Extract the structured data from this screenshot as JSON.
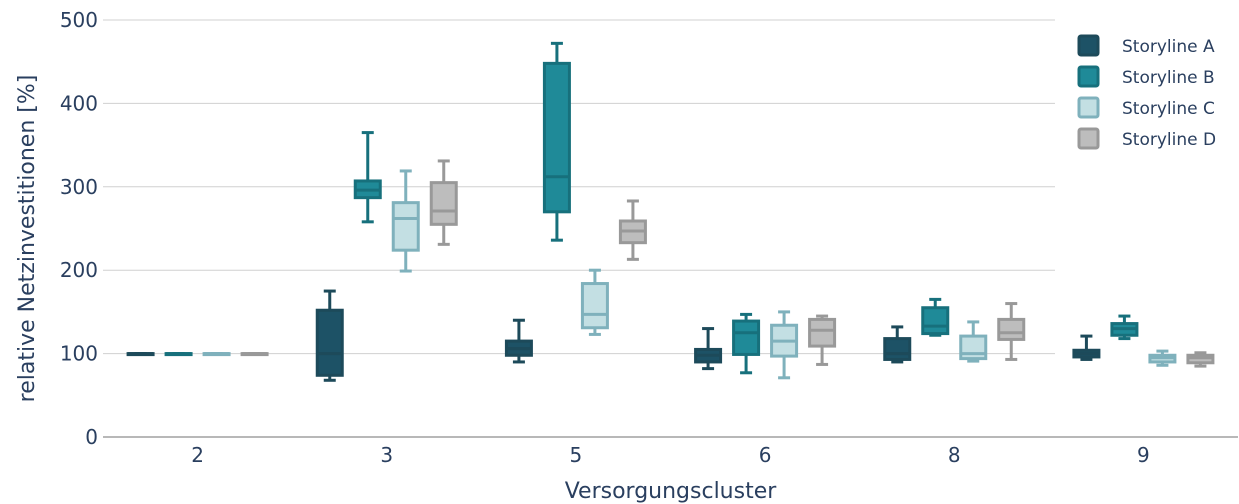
{
  "chart_data": {
    "type": "box",
    "xlabel": "Versorgungscluster",
    "ylabel": "relative Netzinvestitionen [%]",
    "ylim": [
      0,
      500
    ],
    "yticks": [
      0,
      100,
      200,
      300,
      400,
      500
    ],
    "grid": true,
    "legend_position": "top-right",
    "categories": [
      "2",
      "3",
      "5",
      "6",
      "8",
      "9"
    ],
    "series": [
      {
        "name": "Storyline A",
        "fill": "#1d5266",
        "stroke": "#1d4a5a",
        "boxes": [
          {
            "min": 100,
            "q1": 100,
            "median": 100,
            "q3": 100,
            "max": 100
          },
          {
            "min": 68,
            "q1": 74,
            "median": 100,
            "q3": 152,
            "max": 175
          },
          {
            "min": 90,
            "q1": 98,
            "median": 106,
            "q3": 115,
            "max": 140
          },
          {
            "min": 82,
            "q1": 90,
            "median": 98,
            "q3": 105,
            "max": 130
          },
          {
            "min": 90,
            "q1": 93,
            "median": 100,
            "q3": 118,
            "max": 132
          },
          {
            "min": 93,
            "q1": 96,
            "median": 100,
            "q3": 104,
            "max": 121
          }
        ]
      },
      {
        "name": "Storyline B",
        "fill": "#1f8a98",
        "stroke": "#17707c",
        "boxes": [
          {
            "min": 100,
            "q1": 100,
            "median": 100,
            "q3": 100,
            "max": 100
          },
          {
            "min": 258,
            "q1": 287,
            "median": 296,
            "q3": 307,
            "max": 365
          },
          {
            "min": 236,
            "q1": 270,
            "median": 312,
            "q3": 448,
            "max": 472
          },
          {
            "min": 77,
            "q1": 99,
            "median": 125,
            "q3": 139,
            "max": 147
          },
          {
            "min": 122,
            "q1": 124,
            "median": 133,
            "q3": 155,
            "max": 165
          },
          {
            "min": 118,
            "q1": 122,
            "median": 130,
            "q3": 136,
            "max": 145
          }
        ]
      },
      {
        "name": "Storyline C",
        "fill": "#c3dfe3",
        "stroke": "#7fb1bc",
        "boxes": [
          {
            "min": 100,
            "q1": 100,
            "median": 100,
            "q3": 100,
            "max": 100
          },
          {
            "min": 199,
            "q1": 224,
            "median": 262,
            "q3": 281,
            "max": 319
          },
          {
            "min": 123,
            "q1": 131,
            "median": 147,
            "q3": 184,
            "max": 200
          },
          {
            "min": 71,
            "q1": 97,
            "median": 115,
            "q3": 134,
            "max": 150
          },
          {
            "min": 91,
            "q1": 94,
            "median": 100,
            "q3": 121,
            "max": 138
          },
          {
            "min": 86,
            "q1": 90,
            "median": 95,
            "q3": 98,
            "max": 103
          }
        ]
      },
      {
        "name": "Storyline D",
        "fill": "#bdbdbd",
        "stroke": "#999999",
        "boxes": [
          {
            "min": 100,
            "q1": 100,
            "median": 100,
            "q3": 100,
            "max": 100
          },
          {
            "min": 231,
            "q1": 255,
            "median": 271,
            "q3": 305,
            "max": 331
          },
          {
            "min": 213,
            "q1": 233,
            "median": 247,
            "q3": 259,
            "max": 283
          },
          {
            "min": 87,
            "q1": 109,
            "median": 128,
            "q3": 141,
            "max": 145
          },
          {
            "min": 93,
            "q1": 117,
            "median": 125,
            "q3": 141,
            "max": 160
          },
          {
            "min": 85,
            "q1": 89,
            "median": 95,
            "q3": 98,
            "max": 101
          }
        ]
      }
    ]
  }
}
